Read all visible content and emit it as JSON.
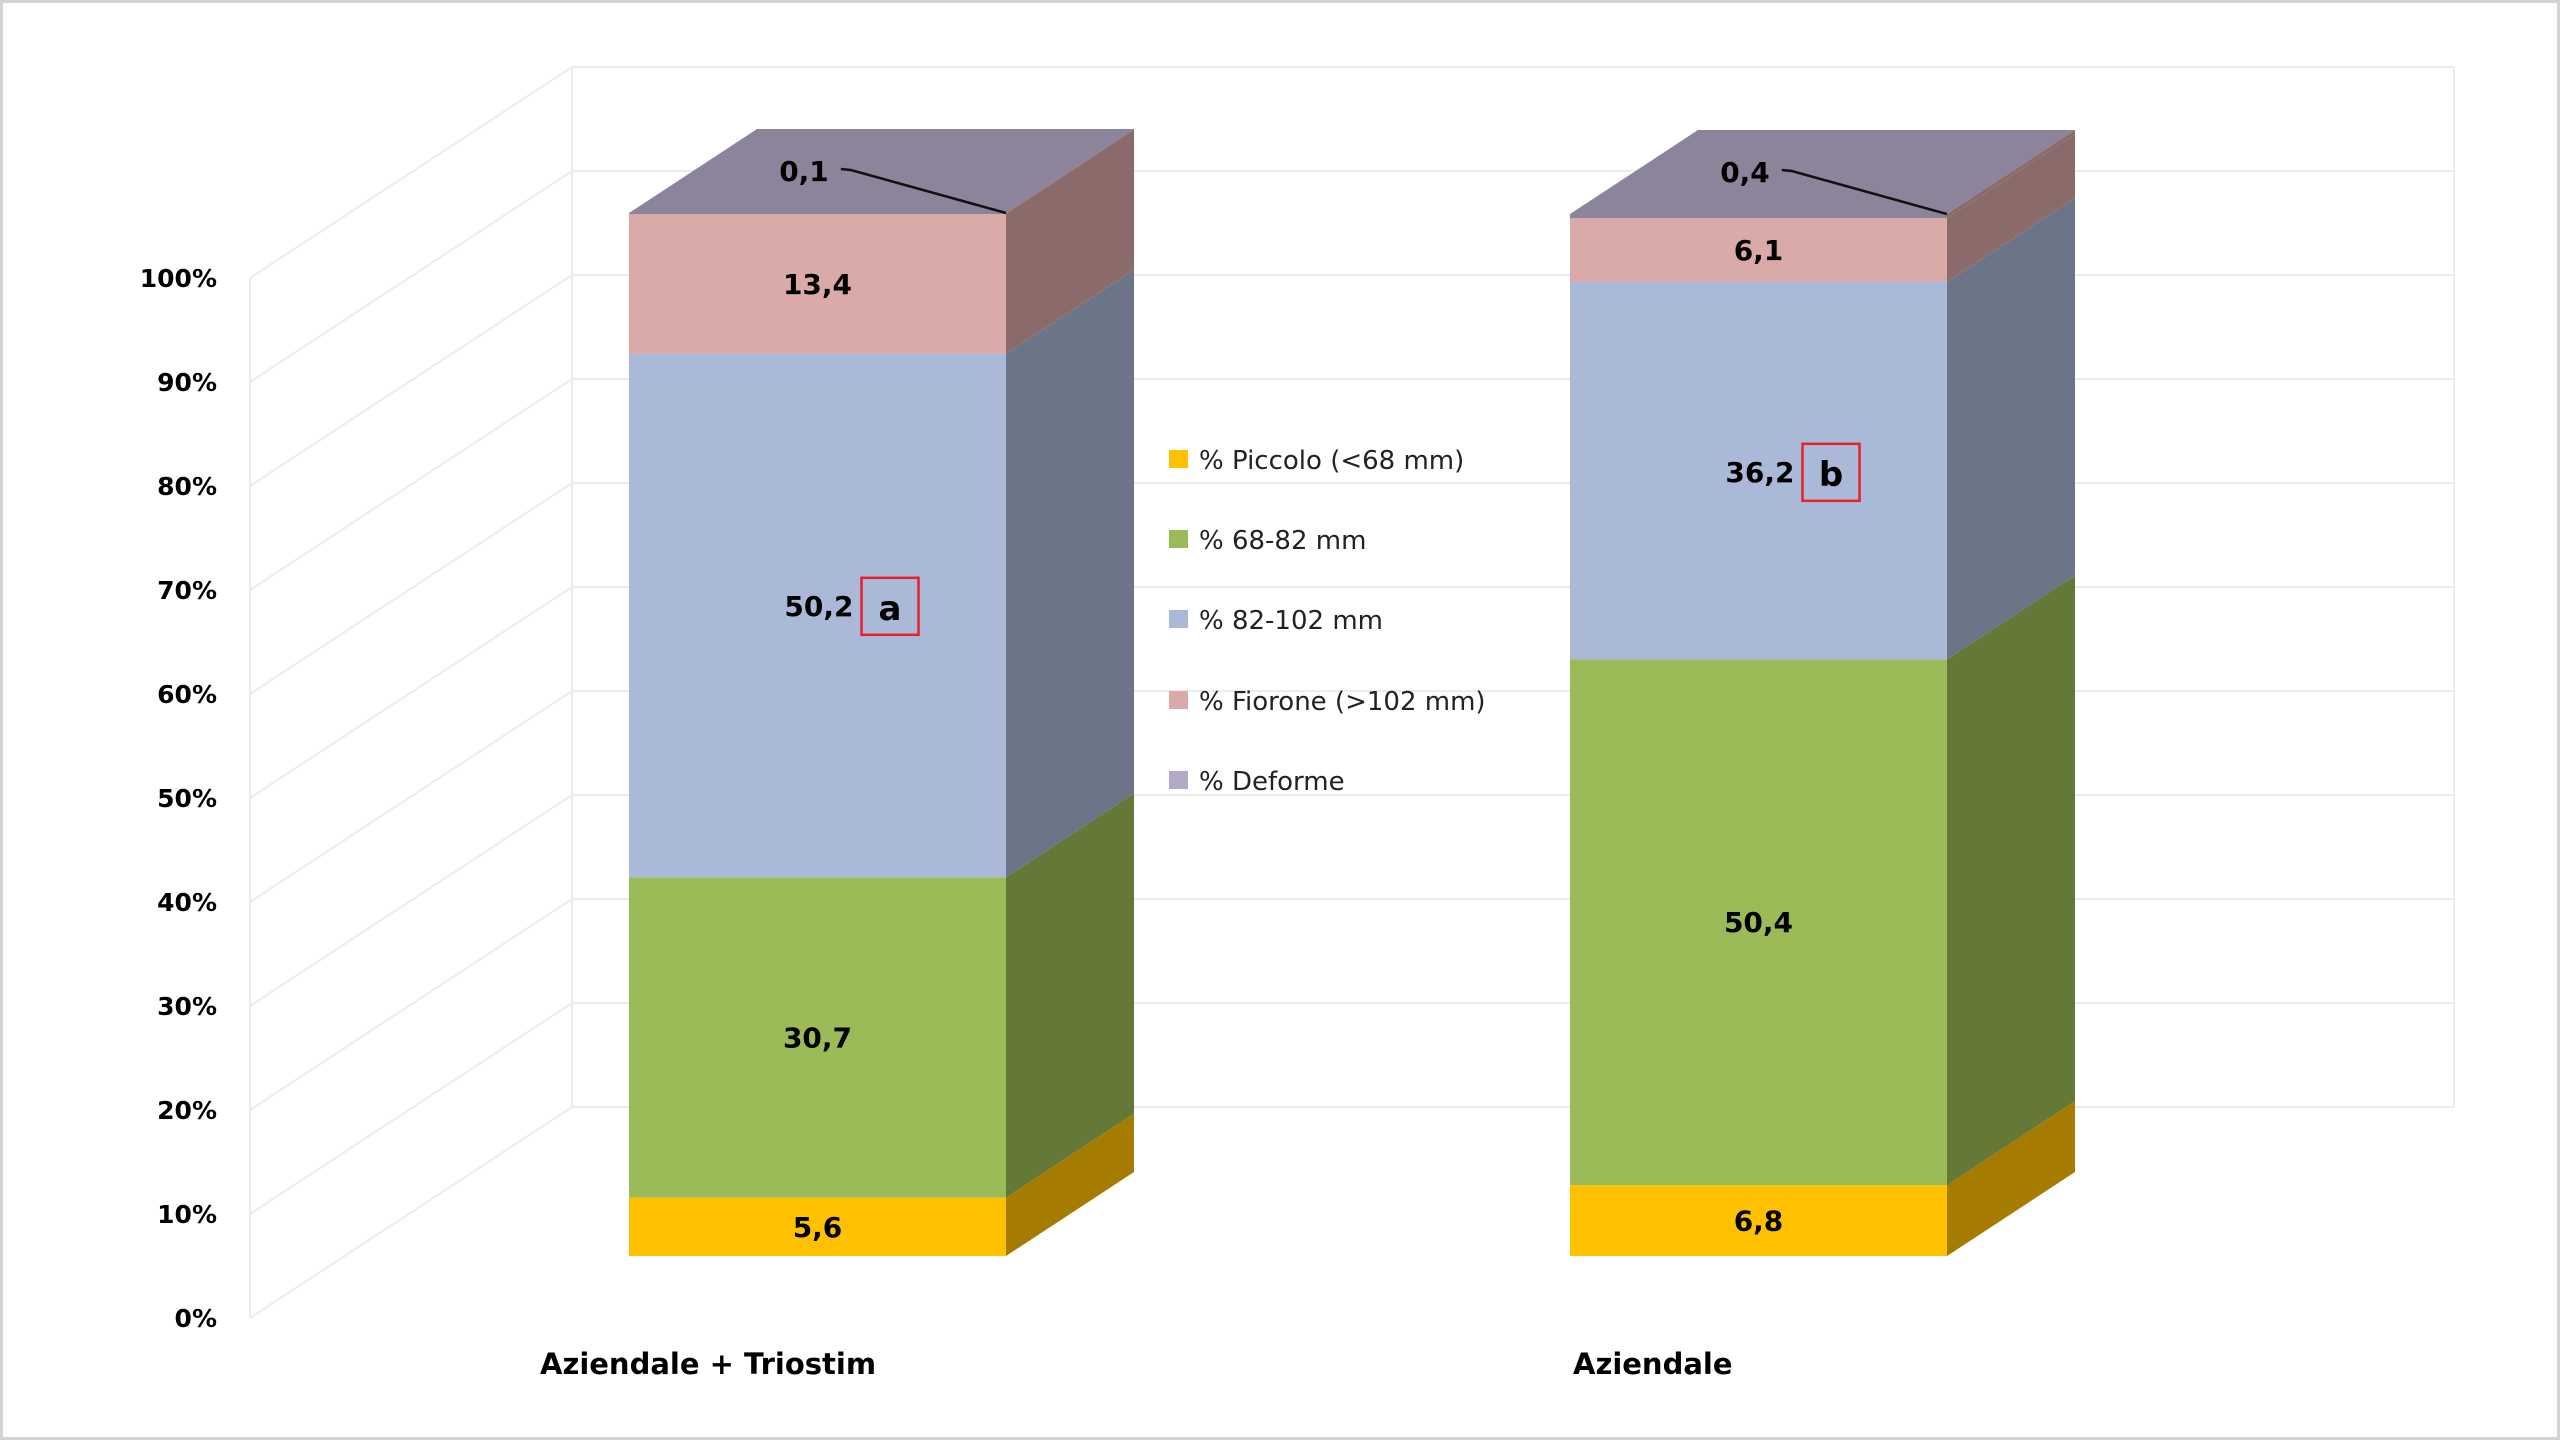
{
  "chart_data": {
    "type": "bar",
    "subtype": "100% stacked 3D column",
    "title": "",
    "xlabel": "",
    "ylabel": "",
    "ylim": [
      0,
      100
    ],
    "y_ticks": [
      "0%",
      "10%",
      "20%",
      "30%",
      "40%",
      "50%",
      "60%",
      "70%",
      "80%",
      "90%",
      "100%"
    ],
    "grid": true,
    "legend_position": "center",
    "categories": [
      "Aziendale + Triostim",
      "Aziendale"
    ],
    "series": [
      {
        "name": "% Piccolo (<68 mm)",
        "color": "#FFC000",
        "side_color": "#A67C00",
        "legend_color": "#FFC000",
        "values": [
          5.6,
          6.8
        ],
        "labels": [
          "5,6",
          "6,8"
        ]
      },
      {
        "name": "% 68-82 mm",
        "color": "#9BBB59",
        "side_color": "#647837",
        "legend_color": "#9BBB59",
        "values": [
          30.7,
          50.4
        ],
        "labels": [
          "30,7",
          "50,4"
        ]
      },
      {
        "name": "% 82-102 mm",
        "color": "#AAB9D7",
        "side_color": "#6B7587",
        "legend_color": "#AAB9D7",
        "values": [
          50.2,
          36.2
        ],
        "labels": [
          "50,2",
          "36,2"
        ]
      },
      {
        "name": "% Fiorone (>102 mm)",
        "color": "#D9AAA7",
        "side_color": "#8A6B6A",
        "legend_color": "#D9AAA7",
        "values": [
          13.4,
          6.1
        ],
        "labels": [
          "13,4",
          "6,1"
        ]
      },
      {
        "name": "% Deforme",
        "color": "#8B849A",
        "side_color": "#8A6B6A",
        "legend_color": "#B3A8C6",
        "values": [
          0.1,
          0.4
        ],
        "labels": [
          "0,1",
          "0,4"
        ]
      }
    ],
    "annotations": [
      {
        "category": "Aziendale + Triostim",
        "series": "% 82-102 mm",
        "text": "a",
        "box_color": "#E8202A"
      },
      {
        "category": "Aziendale",
        "series": "% 82-102 mm",
        "text": "b",
        "box_color": "#E8202A"
      }
    ]
  }
}
